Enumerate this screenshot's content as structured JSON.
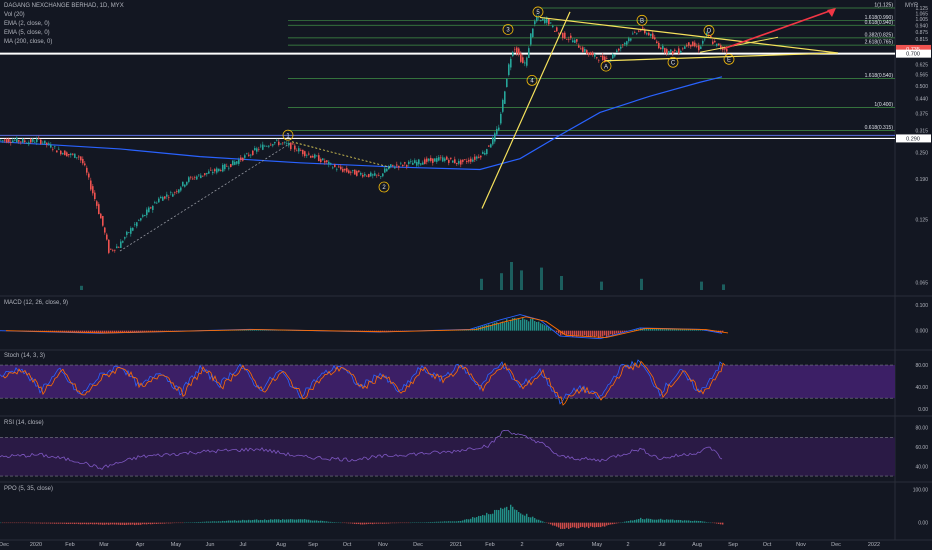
{
  "header": {
    "symbol_title": "DAGANG NEXCHANGE BERHAD, 1D, MYX",
    "indicators": [
      "Vol (20)",
      "EMA (2, close, 0)",
      "EMA (5, close, 0)",
      "MA (200, close, 0)"
    ],
    "currency": "MYR"
  },
  "price_labels": {
    "current": "0.735",
    "support": "0.700",
    "left_level": "0.290"
  },
  "colors": {
    "background": "#131722",
    "candle_up": "#26a69a",
    "candle_down": "#ef5350",
    "ma200": "#2962ff",
    "trendline": "#f5e15c",
    "fib": "#4caf50",
    "target_arrow": "#f23645",
    "stoch_band": "#3c1f66",
    "rsi_band": "#2a1a45",
    "macd_line": "#2962ff",
    "signal_line": "#ff6d00"
  },
  "chart_data": [
    {
      "type": "line",
      "name": "price-pane",
      "price_scale": "log",
      "y_ticks": [
        "1.125",
        "1.065",
        "1.005",
        "0.940",
        "0.875",
        "0.815",
        "0.750",
        "0.690",
        "0.625",
        "0.565",
        "0.500",
        "0.440",
        "0.375",
        "0.315",
        "0.250",
        "0.190",
        "0.125",
        "0.065"
      ],
      "x_ticks": [
        "Dec",
        "2020",
        "Feb",
        "Mar",
        "Apr",
        "May",
        "Jun",
        "Jul",
        "Aug",
        "Sep",
        "Oct",
        "Nov",
        "Dec",
        "2021",
        "Feb",
        "2",
        "Apr",
        "May",
        "2",
        "Jul",
        "Aug",
        "Sep",
        "Oct",
        "Nov",
        "Dec",
        "2022"
      ],
      "fib_levels": [
        {
          "label": "1(1.125)",
          "value": 1.125
        },
        {
          "label": "1.618(0.990)",
          "value": 0.99
        },
        {
          "label": "0.618(0.940)",
          "value": 0.94
        },
        {
          "label": "0.382(0.825)",
          "value": 0.825
        },
        {
          "label": "2.618(0.765)",
          "value": 0.765
        },
        {
          "label": "1.618(0.540)",
          "value": 0.54
        },
        {
          "label": "1(0.400)",
          "value": 0.4
        },
        {
          "label": "0.618(0.315)",
          "value": 0.315
        }
      ],
      "horizontal_lines": [
        0.7,
        0.29
      ],
      "wave_labels": [
        "1",
        "2",
        "3",
        "4",
        "5",
        "A",
        "B",
        "C",
        "D",
        "E"
      ],
      "series": [
        {
          "values": [
            [
              0,
              0.285
            ],
            [
              15,
              0.285
            ],
            [
              30,
              0.28
            ],
            [
              40,
              0.285
            ],
            [
              50,
              0.27
            ],
            [
              60,
              0.255
            ],
            [
              70,
              0.245
            ],
            [
              80,
              0.24
            ],
            [
              85,
              0.22
            ],
            [
              92,
              0.175
            ],
            [
              100,
              0.135
            ],
            [
              110,
              0.09
            ],
            [
              120,
              0.095
            ],
            [
              130,
              0.11
            ],
            [
              145,
              0.13
            ],
            [
              160,
              0.155
            ],
            [
              175,
              0.165
            ],
            [
              190,
              0.19
            ],
            [
              205,
              0.2
            ],
            [
              220,
              0.21
            ],
            [
              235,
              0.225
            ],
            [
              250,
              0.245
            ],
            [
              262,
              0.265
            ],
            [
              275,
              0.28
            ],
            [
              290,
              0.27
            ],
            [
              305,
              0.25
            ],
            [
              320,
              0.235
            ],
            [
              335,
              0.215
            ],
            [
              350,
              0.205
            ],
            [
              365,
              0.2
            ],
            [
              380,
              0.195
            ],
            [
              390,
              0.215
            ],
            [
              400,
              0.22
            ],
            [
              415,
              0.225
            ],
            [
              430,
              0.23
            ],
            [
              445,
              0.235
            ],
            [
              460,
              0.225
            ],
            [
              475,
              0.235
            ],
            [
              485,
              0.25
            ],
            [
              495,
              0.29
            ],
            [
              500,
              0.33
            ],
            [
              505,
              0.45
            ],
            [
              510,
              0.62
            ],
            [
              515,
              0.76
            ],
            [
              520,
              0.69
            ],
            [
              525,
              0.62
            ],
            [
              528,
              0.66
            ],
            [
              533,
              0.9
            ],
            [
              538,
              1.02
            ],
            [
              542,
              0.98
            ],
            [
              548,
              1.0
            ],
            [
              555,
              0.9
            ],
            [
              565,
              0.84
            ],
            [
              575,
              0.8
            ],
            [
              585,
              0.72
            ],
            [
              595,
              0.68
            ],
            [
              605,
              0.66
            ],
            [
              612,
              0.67
            ],
            [
              620,
              0.74
            ],
            [
              630,
              0.82
            ],
            [
              640,
              0.9
            ],
            [
              650,
              0.86
            ],
            [
              660,
              0.76
            ],
            [
              670,
              0.71
            ],
            [
              680,
              0.72
            ],
            [
              690,
              0.78
            ],
            [
              700,
              0.74
            ],
            [
              708,
              0.85
            ],
            [
              715,
              0.78
            ],
            [
              722,
              0.74
            ],
            [
              728,
              0.735
            ]
          ]
        },
        {
          "name": "MA 200",
          "values": [
            [
              0,
              0.28
            ],
            [
              60,
              0.27
            ],
            [
              120,
              0.26
            ],
            [
              200,
              0.24
            ],
            [
              300,
              0.225
            ],
            [
              400,
              0.215
            ],
            [
              480,
              0.21
            ],
            [
              520,
              0.235
            ],
            [
              560,
              0.3
            ],
            [
              600,
              0.38
            ],
            [
              650,
              0.45
            ],
            [
              700,
              0.52
            ],
            [
              722,
              0.55
            ]
          ]
        }
      ],
      "volume": [
        [
          80,
          0.15
        ],
        [
          480,
          0.4
        ],
        [
          500,
          0.6
        ],
        [
          510,
          1.0
        ],
        [
          520,
          0.7
        ],
        [
          540,
          0.8
        ],
        [
          560,
          0.5
        ],
        [
          600,
          0.3
        ],
        [
          640,
          0.4
        ],
        [
          700,
          0.3
        ],
        [
          722,
          0.2
        ]
      ]
    },
    {
      "type": "bar",
      "name": "MACD (12, 26, close, 9)",
      "y_ticks": [
        "0.100",
        "0.000"
      ],
      "values": [
        [
          0,
          0
        ],
        [
          100,
          -0.01
        ],
        [
          250,
          0.005
        ],
        [
          380,
          -0.005
        ],
        [
          470,
          0.005
        ],
        [
          500,
          0.04
        ],
        [
          520,
          0.06
        ],
        [
          540,
          0.04
        ],
        [
          560,
          -0.02
        ],
        [
          600,
          -0.03
        ],
        [
          640,
          0.01
        ],
        [
          700,
          0.005
        ],
        [
          722,
          -0.01
        ]
      ]
    },
    {
      "type": "line",
      "name": "Stoch (14, 3, 3)",
      "y_ticks": [
        "80.00",
        "40.00",
        "0.00"
      ],
      "values": [
        [
          0,
          60
        ],
        [
          20,
          75
        ],
        [
          40,
          35
        ],
        [
          60,
          70
        ],
        [
          80,
          25
        ],
        [
          100,
          60
        ],
        [
          120,
          80
        ],
        [
          140,
          40
        ],
        [
          160,
          70
        ],
        [
          180,
          30
        ],
        [
          200,
          75
        ],
        [
          220,
          45
        ],
        [
          240,
          80
        ],
        [
          260,
          35
        ],
        [
          280,
          70
        ],
        [
          300,
          25
        ],
        [
          320,
          60
        ],
        [
          340,
          80
        ],
        [
          360,
          40
        ],
        [
          380,
          65
        ],
        [
          400,
          30
        ],
        [
          420,
          75
        ],
        [
          440,
          55
        ],
        [
          460,
          80
        ],
        [
          480,
          40
        ],
        [
          500,
          85
        ],
        [
          520,
          40
        ],
        [
          540,
          70
        ],
        [
          560,
          15
        ],
        [
          580,
          40
        ],
        [
          600,
          20
        ],
        [
          620,
          75
        ],
        [
          640,
          85
        ],
        [
          660,
          30
        ],
        [
          680,
          70
        ],
        [
          700,
          30
        ],
        [
          720,
          80
        ]
      ]
    },
    {
      "type": "line",
      "name": "RSI (14, close)",
      "y_ticks": [
        "80.00",
        "60.00",
        "40.00"
      ],
      "values": [
        [
          0,
          50
        ],
        [
          40,
          52
        ],
        [
          80,
          45
        ],
        [
          100,
          38
        ],
        [
          140,
          50
        ],
        [
          200,
          55
        ],
        [
          260,
          58
        ],
        [
          300,
          50
        ],
        [
          350,
          47
        ],
        [
          400,
          52
        ],
        [
          450,
          55
        ],
        [
          490,
          62
        ],
        [
          505,
          78
        ],
        [
          520,
          72
        ],
        [
          540,
          65
        ],
        [
          560,
          50
        ],
        [
          600,
          46
        ],
        [
          640,
          58
        ],
        [
          660,
          48
        ],
        [
          700,
          55
        ],
        [
          710,
          60
        ],
        [
          722,
          48
        ]
      ]
    },
    {
      "type": "bar",
      "name": "PPO (5, 35, close)",
      "y_ticks": [
        "100.00",
        "0.00"
      ],
      "values": [
        [
          0,
          0
        ],
        [
          130,
          -8
        ],
        [
          250,
          10
        ],
        [
          300,
          12
        ],
        [
          360,
          -6
        ],
        [
          460,
          6
        ],
        [
          510,
          55
        ],
        [
          520,
          35
        ],
        [
          560,
          -20
        ],
        [
          600,
          -15
        ],
        [
          640,
          15
        ],
        [
          700,
          5
        ],
        [
          722,
          -6
        ]
      ]
    }
  ]
}
